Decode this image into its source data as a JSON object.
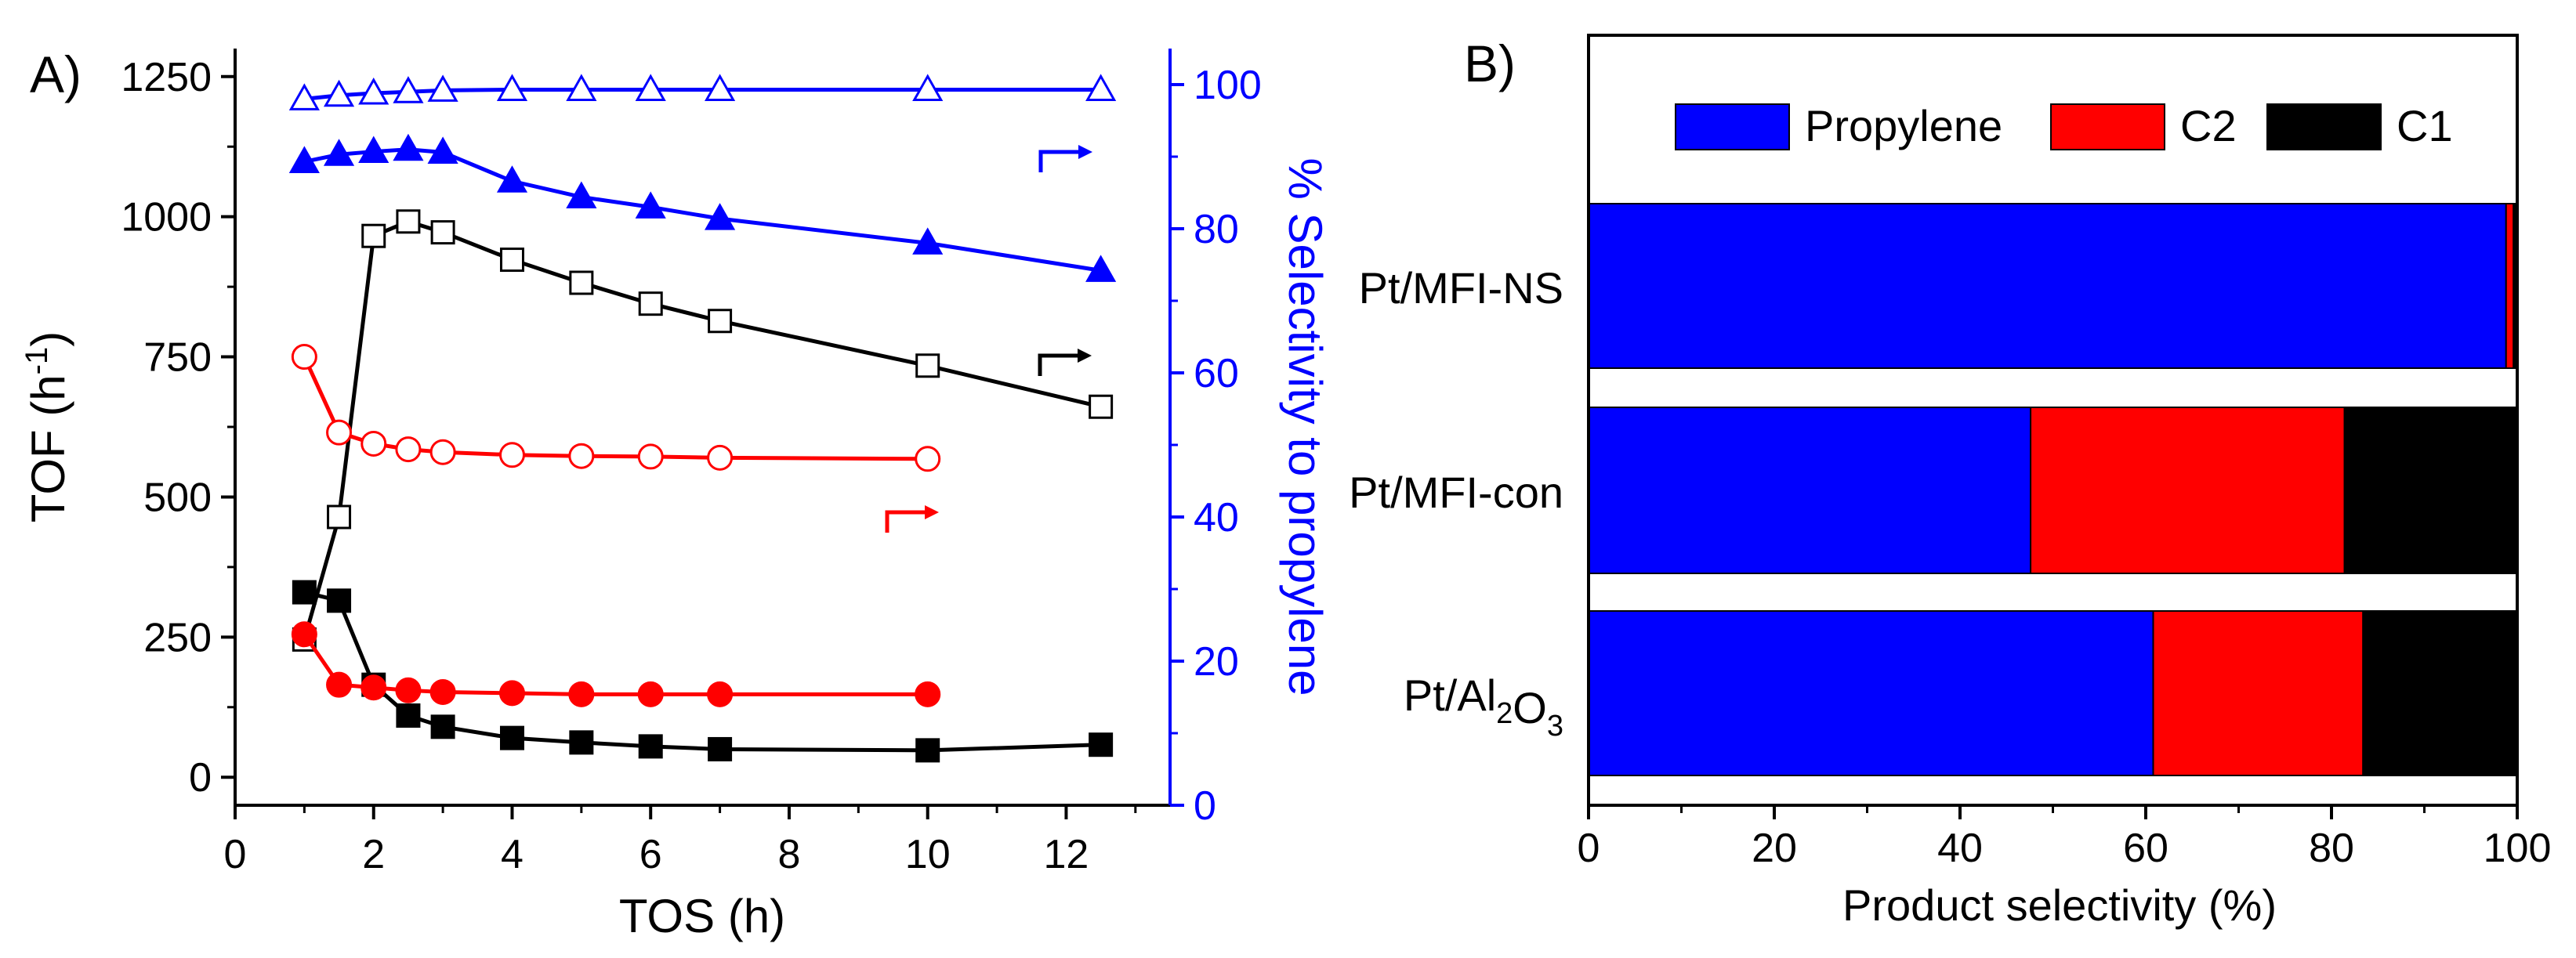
{
  "chart_data": [
    {
      "panel": "A)",
      "type": "line",
      "xlabel": "TOS (h)",
      "ylabel": "TOF (h^-1)",
      "ylabel_parts": [
        "TOF (h",
        "-1",
        ")"
      ],
      "ylabel_right": "% Selectivity to propylene",
      "xlim": [
        0,
        13.5
      ],
      "ylim_left": [
        -50,
        1300
      ],
      "ylim_right": [
        0,
        105
      ],
      "x_ticks": [
        0,
        2,
        4,
        6,
        8,
        10,
        12
      ],
      "y_left_ticks": [
        0,
        250,
        500,
        750,
        1000,
        1250
      ],
      "y_right_ticks": [
        0,
        20,
        40,
        60,
        80,
        100
      ],
      "colors": {
        "black": "#000000",
        "red": "#ff0000",
        "blue": "#0000ff"
      },
      "series": [
        {
          "name": "black-open-square-TOF",
          "axis": "right",
          "color": "#000000",
          "marker": "square",
          "filled": false,
          "x": [
            1,
            1.5,
            2,
            2.5,
            3,
            4,
            5,
            6,
            7,
            10,
            12.5
          ],
          "values": [
            23,
            40,
            79,
            81,
            79.5,
            75.7,
            72.5,
            69.6,
            67.2,
            61,
            55.3
          ]
        },
        {
          "name": "black-filled-square-TOF",
          "axis": "left",
          "color": "#000000",
          "marker": "square",
          "filled": true,
          "x": [
            1,
            1.5,
            2,
            2.5,
            3,
            4,
            5,
            6,
            7,
            10,
            12.5
          ],
          "values": [
            330,
            315,
            165,
            110,
            90,
            70,
            62,
            55,
            50,
            48,
            58
          ]
        },
        {
          "name": "red-open-circle-selectivity",
          "axis": "left",
          "color": "#ff0000",
          "marker": "circle",
          "filled": false,
          "x": [
            1,
            1.5,
            2,
            2.5,
            3,
            4,
            5,
            6,
            7,
            10
          ],
          "values": [
            750,
            615,
            595,
            585,
            580,
            575,
            573,
            572,
            570,
            568
          ]
        },
        {
          "name": "red-filled-circle-TOF",
          "axis": "left",
          "color": "#ff0000",
          "marker": "circle",
          "filled": true,
          "x": [
            1,
            1.5,
            2,
            2.5,
            3,
            4,
            5,
            6,
            7,
            10
          ],
          "values": [
            255,
            165,
            160,
            155,
            152,
            150,
            148,
            148,
            148,
            148
          ]
        },
        {
          "name": "blue-open-triangle-selectivity",
          "axis": "right",
          "color": "#0000ff",
          "marker": "triangle",
          "filled": false,
          "x": [
            1,
            1.5,
            2,
            2.5,
            3,
            4,
            5,
            6,
            7,
            10,
            12.5
          ],
          "values": [
            98,
            98.5,
            98.8,
            99,
            99.2,
            99.3,
            99.3,
            99.3,
            99.3,
            99.3,
            99.3
          ]
        },
        {
          "name": "blue-filled-triangle-selectivity",
          "axis": "right",
          "color": "#0000ff",
          "marker": "triangle",
          "filled": true,
          "x": [
            1,
            1.5,
            2,
            2.5,
            3,
            4,
            5,
            6,
            7,
            10,
            12.5
          ],
          "values": [
            89.3,
            90.3,
            90.7,
            91,
            90.6,
            86.6,
            84.4,
            83,
            81.4,
            78,
            74.2
          ]
        }
      ],
      "annotations": [
        {
          "name": "black-arrow-to-right-axis",
          "color": "#000000",
          "direction": "right"
        },
        {
          "name": "red-arrow-to-right-axis",
          "color": "#ff0000",
          "direction": "right"
        },
        {
          "name": "blue-arrow-to-right-axis",
          "color": "#0000ff",
          "direction": "right"
        }
      ]
    },
    {
      "panel": "B)",
      "type": "bar",
      "orientation": "horizontal",
      "stacked": true,
      "xlabel": "Product selectivity (%)",
      "xlim": [
        0,
        100
      ],
      "x_ticks": [
        0,
        20,
        40,
        60,
        80,
        100
      ],
      "categories": [
        {
          "label": "Pt/MFI-NS",
          "parts": [
            {
              "t": "Pt/MFI-NS",
              "sub": false
            }
          ]
        },
        {
          "label": "Pt/MFI-con",
          "parts": [
            {
              "t": "Pt/MFI-con",
              "sub": false
            }
          ]
        },
        {
          "label": "Pt/Al2O3",
          "parts": [
            {
              "t": "Pt/Al",
              "sub": false
            },
            {
              "t": "2",
              "sub": true
            },
            {
              "t": "O",
              "sub": false
            },
            {
              "t": "3",
              "sub": true
            }
          ]
        }
      ],
      "series": [
        {
          "name": "Propylene",
          "color": "#0000ff",
          "values": [
            98.8,
            47.6,
            60.8
          ]
        },
        {
          "name": "C2",
          "color": "#ff0000",
          "values": [
            0.8,
            33.8,
            22.6
          ]
        },
        {
          "name": "C1",
          "color": "#000000",
          "values": [
            0.4,
            18.6,
            16.6
          ]
        }
      ],
      "legend": {
        "position": "top",
        "entries": [
          "Propylene",
          "C2",
          "C1"
        ]
      }
    }
  ]
}
